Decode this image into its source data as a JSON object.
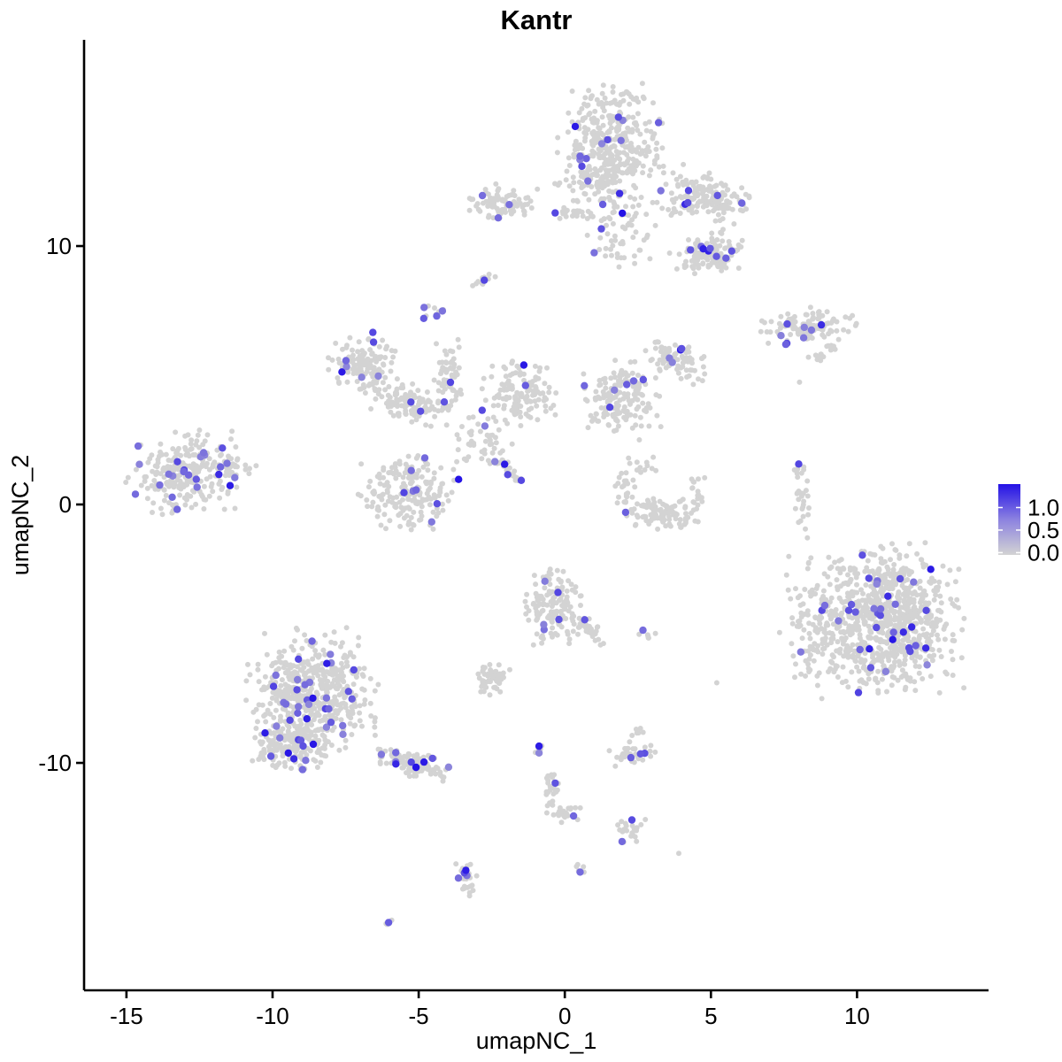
{
  "chart_data": {
    "type": "scatter",
    "title": "Kantr",
    "xlabel": "umapNC_1",
    "ylabel": "umapNC_2",
    "xlim": [
      -16.45,
      14.5
    ],
    "ylim": [
      -18.8,
      17.98
    ],
    "x_ticks": [
      -15,
      -10,
      -5,
      0,
      5,
      10
    ],
    "y_ticks": [
      -10,
      0,
      10
    ],
    "grid": false,
    "legend": {
      "position": "right",
      "labels": [
        "1.0",
        "0.5",
        "0.0"
      ],
      "values": [
        1.0,
        0.5,
        0.0
      ]
    },
    "colors": {
      "low": "#d3d3d3",
      "high": "#2412e6",
      "background": "#ffffff",
      "axis": "#000000"
    },
    "point_radius": {
      "base": 3.0,
      "expressing": 4.2
    },
    "seed": 42,
    "cluster_fields": [
      "cx",
      "cy",
      "sx",
      "sy",
      "angle_deg",
      "n",
      "n_expressing"
    ],
    "clusters": [
      [
        1.52,
        13.7,
        0.82,
        1.16,
        0,
        420,
        14
      ],
      [
        4.76,
        11.92,
        0.68,
        0.45,
        -15,
        170,
        6
      ],
      [
        4.91,
        9.69,
        0.57,
        0.4,
        10,
        130,
        8
      ],
      [
        1.88,
        10.55,
        0.6,
        0.7,
        0,
        60,
        2
      ],
      [
        -2.15,
        11.64,
        0.55,
        0.28,
        0,
        85,
        3
      ],
      [
        0.3,
        11.27,
        0.33,
        0.12,
        0,
        22,
        1
      ],
      [
        -2.79,
        8.73,
        0.25,
        0.12,
        35,
        12,
        1
      ],
      [
        -4.58,
        7.43,
        0.2,
        0.2,
        0,
        10,
        4
      ],
      [
        8.3,
        6.92,
        0.76,
        0.31,
        5,
        115,
        8
      ],
      [
        8.82,
        5.89,
        0.35,
        0.12,
        42,
        16,
        0
      ],
      [
        -6.91,
        5.41,
        0.53,
        0.57,
        0,
        140,
        7
      ],
      [
        -5.33,
        3.94,
        0.55,
        0.35,
        -25,
        110,
        3
      ],
      [
        -4.0,
        4.86,
        0.25,
        0.7,
        0,
        65,
        1
      ],
      [
        -1.52,
        4.28,
        0.57,
        0.59,
        0,
        130,
        3
      ],
      [
        1.88,
        4.18,
        0.62,
        0.63,
        0,
        170,
        6
      ],
      [
        3.85,
        5.65,
        0.53,
        0.3,
        -25,
        85,
        4
      ],
      [
        -1.97,
        1.34,
        0.4,
        0.1,
        -42,
        26,
        4
      ],
      [
        -5.33,
        0.48,
        0.76,
        0.64,
        0,
        190,
        8
      ],
      [
        -2.97,
        2.4,
        0.6,
        0.5,
        0,
        45,
        1
      ],
      [
        -12.97,
        1.16,
        0.93,
        0.73,
        10,
        250,
        22
      ],
      [
        -11.21,
        1.44,
        0.4,
        0.2,
        0,
        25,
        1
      ],
      [
        3.24,
        -0.34,
        0.59,
        0.3,
        -8,
        105,
        1
      ],
      [
        2.06,
        0.72,
        0.15,
        0.5,
        0,
        22,
        0
      ],
      [
        4.48,
        0.48,
        0.15,
        0.42,
        0,
        18,
        0
      ],
      [
        2.94,
        1.47,
        0.4,
        0.2,
        0,
        10,
        0
      ],
      [
        8.12,
        0.17,
        0.15,
        0.82,
        5,
        32,
        1
      ],
      [
        11.03,
        -4.45,
        1.15,
        1.3,
        0,
        850,
        34
      ],
      [
        8.7,
        -4.55,
        0.6,
        1.3,
        0,
        120,
        2
      ],
      [
        -8.67,
        -7.36,
        1.0,
        1.16,
        0,
        520,
        34
      ],
      [
        -9.33,
        -9.32,
        0.66,
        0.41,
        0,
        160,
        8
      ],
      [
        -5.15,
        -10.07,
        0.66,
        0.22,
        -17,
        120,
        9
      ],
      [
        -0.33,
        -3.94,
        0.45,
        0.7,
        0,
        150,
        5
      ],
      [
        0.82,
        -4.86,
        0.35,
        0.15,
        -45,
        35,
        1
      ],
      [
        2.88,
        -5.0,
        0.2,
        0.1,
        0,
        7,
        1
      ],
      [
        -2.48,
        -6.81,
        0.3,
        0.31,
        0,
        60,
        0
      ],
      [
        -0.88,
        -9.42,
        0.1,
        0.12,
        0,
        6,
        1
      ],
      [
        -0.42,
        -10.96,
        0.15,
        0.38,
        -12,
        26,
        1
      ],
      [
        -0.03,
        -11.92,
        0.33,
        0.22,
        0,
        22,
        1
      ],
      [
        2.36,
        -9.62,
        0.4,
        0.25,
        0,
        38,
        3
      ],
      [
        2.42,
        -8.77,
        0.12,
        0.2,
        0,
        6,
        0
      ],
      [
        2.24,
        -12.6,
        0.3,
        0.22,
        0,
        22,
        2
      ],
      [
        -3.36,
        -14.55,
        0.18,
        0.45,
        0,
        30,
        4
      ],
      [
        -6.09,
        -16.2,
        0.12,
        0.08,
        0,
        4,
        1
      ],
      [
        0.58,
        -14.11,
        0.12,
        0.1,
        0,
        6,
        1
      ]
    ],
    "highlight_points": [
      {
        "x": 1.97,
        "y": 11.27,
        "value": 1.0
      },
      {
        "x": -5.09,
        "y": -10.17,
        "value": 1.0
      },
      {
        "x": -0.88,
        "y": -9.35,
        "value": 0.95
      }
    ],
    "outlier_points": [
      [
        8.03,
        4.73
      ],
      [
        2.55,
        2.5
      ],
      [
        5.2,
        -6.9
      ],
      [
        -2.36,
        12.4
      ],
      [
        3.9,
        -13.5
      ]
    ]
  }
}
